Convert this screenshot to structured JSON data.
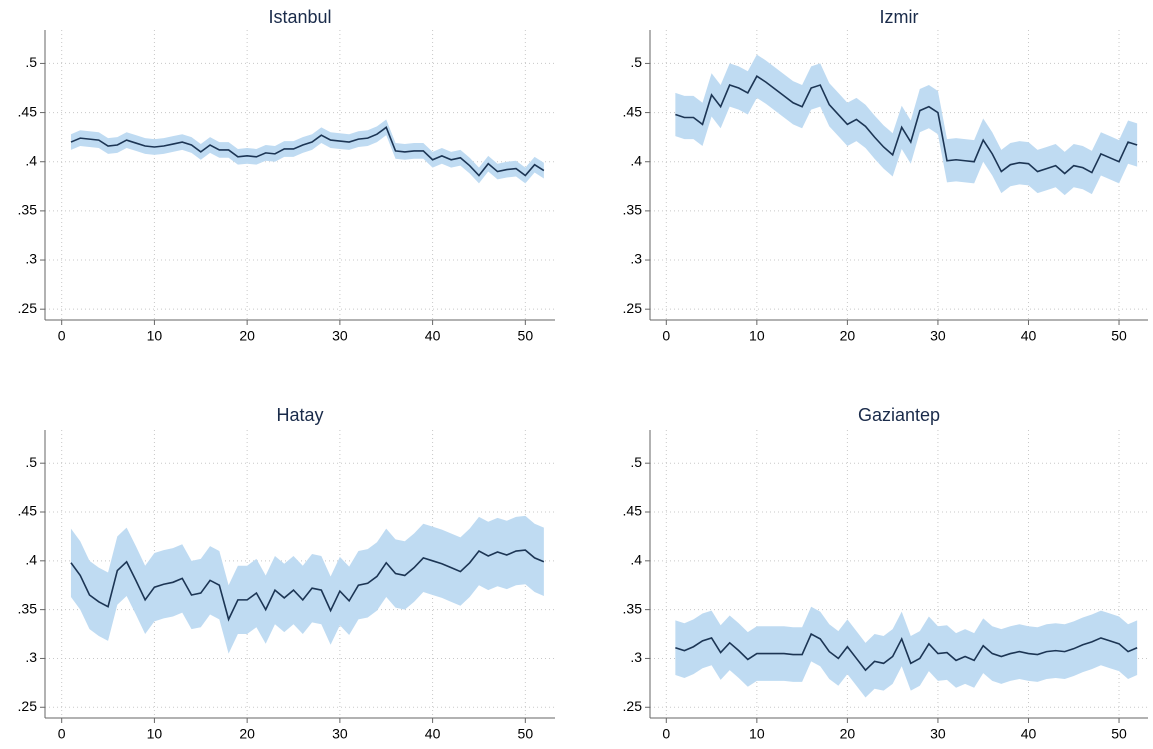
{
  "chart_data": [
    {
      "type": "line",
      "title": "Istanbul",
      "color": "#1c3554",
      "band_color": "#bfdbf2",
      "grid": true,
      "x": [
        1,
        2,
        3,
        4,
        5,
        6,
        7,
        8,
        9,
        10,
        11,
        12,
        13,
        14,
        15,
        16,
        17,
        18,
        19,
        20,
        21,
        22,
        23,
        24,
        25,
        26,
        27,
        28,
        29,
        30,
        31,
        32,
        33,
        34,
        35,
        36,
        37,
        38,
        39,
        40,
        41,
        42,
        43,
        44,
        45,
        46,
        47,
        48,
        49,
        50,
        51,
        52
      ],
      "values": [
        0.42,
        0.424,
        0.423,
        0.422,
        0.416,
        0.417,
        0.422,
        0.419,
        0.416,
        0.415,
        0.416,
        0.418,
        0.42,
        0.417,
        0.41,
        0.417,
        0.412,
        0.412,
        0.405,
        0.406,
        0.405,
        0.409,
        0.408,
        0.413,
        0.413,
        0.417,
        0.42,
        0.427,
        0.422,
        0.421,
        0.42,
        0.423,
        0.424,
        0.428,
        0.435,
        0.411,
        0.41,
        0.411,
        0.411,
        0.402,
        0.406,
        0.402,
        0.404,
        0.396,
        0.386,
        0.398,
        0.39,
        0.392,
        0.393,
        0.386,
        0.397,
        0.391
      ],
      "lower": [
        0.412,
        0.416,
        0.415,
        0.414,
        0.408,
        0.409,
        0.414,
        0.411,
        0.408,
        0.407,
        0.408,
        0.41,
        0.412,
        0.409,
        0.402,
        0.409,
        0.404,
        0.404,
        0.397,
        0.398,
        0.397,
        0.401,
        0.4,
        0.405,
        0.405,
        0.409,
        0.412,
        0.419,
        0.414,
        0.413,
        0.412,
        0.415,
        0.416,
        0.42,
        0.427,
        0.403,
        0.402,
        0.403,
        0.403,
        0.394,
        0.398,
        0.394,
        0.396,
        0.388,
        0.378,
        0.39,
        0.382,
        0.384,
        0.385,
        0.378,
        0.389,
        0.383
      ],
      "upper": [
        0.428,
        0.432,
        0.431,
        0.43,
        0.424,
        0.425,
        0.43,
        0.427,
        0.424,
        0.423,
        0.424,
        0.426,
        0.428,
        0.425,
        0.418,
        0.425,
        0.42,
        0.42,
        0.413,
        0.414,
        0.413,
        0.417,
        0.416,
        0.421,
        0.421,
        0.425,
        0.428,
        0.435,
        0.43,
        0.429,
        0.428,
        0.431,
        0.432,
        0.436,
        0.443,
        0.419,
        0.418,
        0.419,
        0.419,
        0.41,
        0.414,
        0.41,
        0.412,
        0.404,
        0.394,
        0.406,
        0.398,
        0.4,
        0.401,
        0.394,
        0.405,
        0.399
      ],
      "xlim": [
        -1.8,
        53.2
      ],
      "ylim": [
        0.239,
        0.534
      ],
      "xticks": [
        0,
        10,
        20,
        30,
        40,
        50
      ],
      "yticks": [
        {
          "value": 0.25,
          "label": ".25"
        },
        {
          "value": 0.3,
          "label": ".3"
        },
        {
          "value": 0.35,
          "label": ".35"
        },
        {
          "value": 0.4,
          "label": ".4"
        },
        {
          "value": 0.45,
          "label": ".45"
        },
        {
          "value": 0.5,
          "label": ".5"
        }
      ]
    },
    {
      "type": "line",
      "title": "Izmir",
      "color": "#1c3554",
      "band_color": "#bfdbf2",
      "grid": true,
      "x": [
        1,
        2,
        3,
        4,
        5,
        6,
        7,
        8,
        9,
        10,
        11,
        12,
        13,
        14,
        15,
        16,
        17,
        18,
        19,
        20,
        21,
        22,
        23,
        24,
        25,
        26,
        27,
        28,
        29,
        30,
        31,
        32,
        33,
        34,
        35,
        36,
        37,
        38,
        39,
        40,
        41,
        42,
        43,
        44,
        45,
        46,
        47,
        48,
        49,
        50,
        51,
        52
      ],
      "values": [
        0.448,
        0.445,
        0.445,
        0.438,
        0.468,
        0.456,
        0.478,
        0.475,
        0.47,
        0.487,
        0.481,
        0.474,
        0.467,
        0.46,
        0.456,
        0.475,
        0.478,
        0.458,
        0.448,
        0.438,
        0.443,
        0.436,
        0.425,
        0.415,
        0.407,
        0.435,
        0.42,
        0.452,
        0.456,
        0.45,
        0.401,
        0.402,
        0.401,
        0.4,
        0.422,
        0.408,
        0.39,
        0.397,
        0.399,
        0.398,
        0.39,
        0.393,
        0.396,
        0.388,
        0.396,
        0.394,
        0.389,
        0.408,
        0.404,
        0.4,
        0.42,
        0.417
      ],
      "lower": [
        0.426,
        0.423,
        0.423,
        0.416,
        0.446,
        0.434,
        0.456,
        0.453,
        0.448,
        0.465,
        0.459,
        0.452,
        0.445,
        0.438,
        0.434,
        0.453,
        0.456,
        0.436,
        0.426,
        0.416,
        0.421,
        0.414,
        0.403,
        0.393,
        0.385,
        0.413,
        0.398,
        0.43,
        0.434,
        0.428,
        0.379,
        0.38,
        0.379,
        0.378,
        0.4,
        0.386,
        0.368,
        0.375,
        0.377,
        0.376,
        0.368,
        0.371,
        0.374,
        0.366,
        0.374,
        0.372,
        0.367,
        0.386,
        0.382,
        0.378,
        0.398,
        0.395
      ],
      "upper": [
        0.47,
        0.467,
        0.467,
        0.46,
        0.49,
        0.478,
        0.5,
        0.497,
        0.492,
        0.509,
        0.503,
        0.496,
        0.489,
        0.482,
        0.478,
        0.497,
        0.5,
        0.48,
        0.47,
        0.46,
        0.465,
        0.458,
        0.447,
        0.437,
        0.429,
        0.457,
        0.442,
        0.474,
        0.478,
        0.472,
        0.423,
        0.424,
        0.423,
        0.422,
        0.444,
        0.43,
        0.412,
        0.419,
        0.421,
        0.42,
        0.412,
        0.415,
        0.418,
        0.41,
        0.418,
        0.416,
        0.411,
        0.43,
        0.426,
        0.422,
        0.442,
        0.439
      ],
      "xlim": [
        -1.8,
        53.2
      ],
      "ylim": [
        0.239,
        0.534
      ],
      "xticks": [
        0,
        10,
        20,
        30,
        40,
        50
      ],
      "yticks": [
        {
          "value": 0.25,
          "label": ".25"
        },
        {
          "value": 0.3,
          "label": ".3"
        },
        {
          "value": 0.35,
          "label": ".35"
        },
        {
          "value": 0.4,
          "label": ".4"
        },
        {
          "value": 0.45,
          "label": ".45"
        },
        {
          "value": 0.5,
          "label": ".5"
        }
      ]
    },
    {
      "type": "line",
      "title": "Hatay",
      "color": "#1c3554",
      "band_color": "#bfdbf2",
      "grid": true,
      "x": [
        1,
        2,
        3,
        4,
        5,
        6,
        7,
        8,
        9,
        10,
        11,
        12,
        13,
        14,
        15,
        16,
        17,
        18,
        19,
        20,
        21,
        22,
        23,
        24,
        25,
        26,
        27,
        28,
        29,
        30,
        31,
        32,
        33,
        34,
        35,
        36,
        37,
        38,
        39,
        40,
        41,
        42,
        43,
        44,
        45,
        46,
        47,
        48,
        49,
        50,
        51,
        52
      ],
      "values": [
        0.398,
        0.385,
        0.365,
        0.358,
        0.353,
        0.39,
        0.399,
        0.38,
        0.36,
        0.373,
        0.376,
        0.378,
        0.382,
        0.365,
        0.367,
        0.38,
        0.375,
        0.34,
        0.36,
        0.36,
        0.367,
        0.35,
        0.37,
        0.362,
        0.37,
        0.36,
        0.372,
        0.37,
        0.349,
        0.369,
        0.359,
        0.375,
        0.377,
        0.384,
        0.398,
        0.387,
        0.385,
        0.393,
        0.403,
        0.4,
        0.397,
        0.393,
        0.389,
        0.398,
        0.41,
        0.405,
        0.409,
        0.406,
        0.41,
        0.411,
        0.403,
        0.399
      ],
      "lower": [
        0.363,
        0.35,
        0.33,
        0.323,
        0.318,
        0.355,
        0.364,
        0.345,
        0.325,
        0.338,
        0.341,
        0.343,
        0.347,
        0.33,
        0.332,
        0.345,
        0.34,
        0.305,
        0.325,
        0.325,
        0.332,
        0.315,
        0.335,
        0.327,
        0.335,
        0.325,
        0.337,
        0.335,
        0.314,
        0.334,
        0.324,
        0.34,
        0.342,
        0.349,
        0.363,
        0.352,
        0.35,
        0.358,
        0.368,
        0.365,
        0.362,
        0.358,
        0.354,
        0.363,
        0.375,
        0.37,
        0.374,
        0.371,
        0.375,
        0.376,
        0.368,
        0.364
      ],
      "upper": [
        0.433,
        0.42,
        0.4,
        0.393,
        0.388,
        0.425,
        0.434,
        0.415,
        0.395,
        0.408,
        0.411,
        0.413,
        0.417,
        0.4,
        0.402,
        0.415,
        0.41,
        0.375,
        0.395,
        0.395,
        0.402,
        0.385,
        0.405,
        0.397,
        0.405,
        0.395,
        0.407,
        0.405,
        0.384,
        0.404,
        0.394,
        0.41,
        0.412,
        0.419,
        0.433,
        0.422,
        0.42,
        0.428,
        0.438,
        0.435,
        0.432,
        0.428,
        0.424,
        0.433,
        0.445,
        0.44,
        0.444,
        0.441,
        0.445,
        0.446,
        0.438,
        0.434
      ],
      "xlim": [
        -1.8,
        53.2
      ],
      "ylim": [
        0.239,
        0.534
      ],
      "xticks": [
        0,
        10,
        20,
        30,
        40,
        50
      ],
      "yticks": [
        {
          "value": 0.25,
          "label": ".25"
        },
        {
          "value": 0.3,
          "label": ".3"
        },
        {
          "value": 0.35,
          "label": ".35"
        },
        {
          "value": 0.4,
          "label": ".4"
        },
        {
          "value": 0.45,
          "label": ".45"
        },
        {
          "value": 0.5,
          "label": ".5"
        }
      ]
    },
    {
      "type": "line",
      "title": "Gaziantep",
      "color": "#1c3554",
      "band_color": "#bfdbf2",
      "grid": true,
      "x": [
        1,
        2,
        3,
        4,
        5,
        6,
        7,
        8,
        9,
        10,
        11,
        12,
        13,
        14,
        15,
        16,
        17,
        18,
        19,
        20,
        21,
        22,
        23,
        24,
        25,
        26,
        27,
        28,
        29,
        30,
        31,
        32,
        33,
        34,
        35,
        36,
        37,
        38,
        39,
        40,
        41,
        42,
        43,
        44,
        45,
        46,
        47,
        48,
        49,
        50,
        51,
        52
      ],
      "values": [
        0.311,
        0.308,
        0.312,
        0.318,
        0.321,
        0.306,
        0.316,
        0.308,
        0.299,
        0.305,
        0.305,
        0.305,
        0.305,
        0.304,
        0.304,
        0.325,
        0.32,
        0.307,
        0.3,
        0.312,
        0.3,
        0.288,
        0.297,
        0.295,
        0.302,
        0.32,
        0.295,
        0.3,
        0.315,
        0.305,
        0.306,
        0.298,
        0.302,
        0.298,
        0.313,
        0.305,
        0.302,
        0.305,
        0.307,
        0.305,
        0.304,
        0.307,
        0.308,
        0.307,
        0.31,
        0.314,
        0.317,
        0.321,
        0.318,
        0.315,
        0.307,
        0.311
      ],
      "lower": [
        0.283,
        0.28,
        0.284,
        0.29,
        0.293,
        0.278,
        0.288,
        0.28,
        0.271,
        0.277,
        0.277,
        0.277,
        0.277,
        0.276,
        0.276,
        0.297,
        0.292,
        0.279,
        0.272,
        0.284,
        0.272,
        0.26,
        0.269,
        0.267,
        0.274,
        0.292,
        0.267,
        0.272,
        0.287,
        0.277,
        0.278,
        0.27,
        0.274,
        0.27,
        0.285,
        0.277,
        0.274,
        0.277,
        0.279,
        0.277,
        0.276,
        0.279,
        0.28,
        0.279,
        0.282,
        0.286,
        0.289,
        0.293,
        0.29,
        0.287,
        0.279,
        0.283
      ],
      "upper": [
        0.339,
        0.336,
        0.34,
        0.346,
        0.349,
        0.334,
        0.344,
        0.336,
        0.327,
        0.333,
        0.333,
        0.333,
        0.333,
        0.332,
        0.332,
        0.353,
        0.348,
        0.335,
        0.328,
        0.34,
        0.328,
        0.316,
        0.325,
        0.323,
        0.33,
        0.348,
        0.323,
        0.328,
        0.343,
        0.333,
        0.334,
        0.326,
        0.33,
        0.326,
        0.341,
        0.333,
        0.33,
        0.333,
        0.335,
        0.333,
        0.332,
        0.335,
        0.336,
        0.335,
        0.338,
        0.342,
        0.345,
        0.349,
        0.346,
        0.343,
        0.335,
        0.339
      ],
      "xlim": [
        -1.8,
        53.2
      ],
      "ylim": [
        0.239,
        0.534
      ],
      "xticks": [
        0,
        10,
        20,
        30,
        40,
        50
      ],
      "yticks": [
        {
          "value": 0.25,
          "label": ".25"
        },
        {
          "value": 0.3,
          "label": ".3"
        },
        {
          "value": 0.35,
          "label": ".35"
        },
        {
          "value": 0.4,
          "label": ".4"
        },
        {
          "value": 0.45,
          "label": ".45"
        },
        {
          "value": 0.5,
          "label": ".5"
        }
      ]
    }
  ]
}
